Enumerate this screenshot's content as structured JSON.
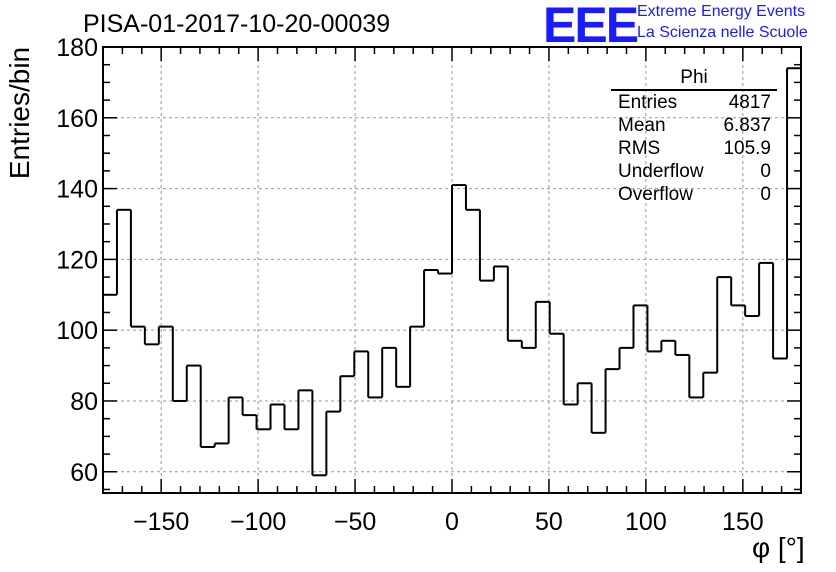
{
  "title": "PISA-01-2017-10-20-00039",
  "brand": {
    "logo_text": "EEE",
    "line1": "Extreme Energy Events",
    "line2": "La Scienza nelle Scuole",
    "color": "#1a1aff"
  },
  "stats_box": {
    "name": "Phi",
    "rows": [
      {
        "label": "Entries",
        "value": "4817"
      },
      {
        "label": "Mean",
        "value": "6.837"
      },
      {
        "label": "RMS",
        "value": "105.9"
      },
      {
        "label": "Underflow",
        "value": "0"
      },
      {
        "label": "Overflow",
        "value": "0"
      }
    ]
  },
  "chart_data": {
    "type": "histogram",
    "title": "PISA-01-2017-10-20-00039",
    "xlabel": "φ [°]",
    "ylabel": "Entries/bin",
    "xlim": [
      -180,
      180
    ],
    "ylim": [
      54,
      180
    ],
    "bin_width": 7.2,
    "grid": true,
    "xticks": [
      -150,
      -100,
      -50,
      0,
      50,
      100,
      150
    ],
    "yticks": [
      60,
      80,
      100,
      120,
      140,
      160,
      180
    ],
    "bin_edges_start": -180,
    "values": [
      110,
      134,
      101,
      96,
      101,
      80,
      90,
      67,
      68,
      81,
      76,
      72,
      79,
      72,
      83,
      59,
      77,
      87,
      94,
      81,
      95,
      84,
      101,
      117,
      116,
      141,
      134,
      114,
      118,
      97,
      95,
      108,
      99,
      79,
      85,
      71,
      89,
      95,
      107,
      94,
      97,
      93,
      81,
      88,
      115,
      107,
      104,
      119,
      92,
      174
    ]
  }
}
